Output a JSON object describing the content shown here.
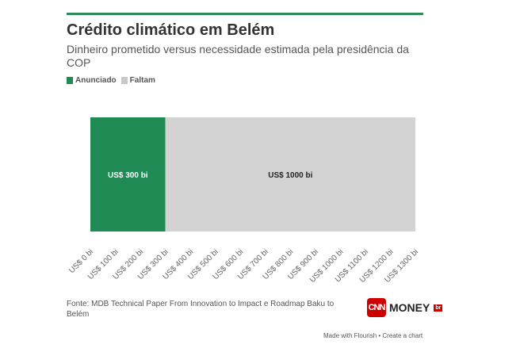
{
  "title": "Crédito climático em Belém",
  "subtitle": "Dinheiro prometido versus necessidade estimada pela presidência da COP",
  "legend": [
    {
      "label": "Anunciado",
      "color": "#1f8a54"
    },
    {
      "label": "Faltam",
      "color": "#c8c8c8"
    }
  ],
  "source": "Fonte: MDB Technical Paper From Innovation to Impact e Roadmap Baku to Belém",
  "logo": {
    "cnn": "CNN",
    "money": "MONEY",
    "badge": "br"
  },
  "footer": "Made with Flourish • Create a chart",
  "chart_data": {
    "type": "bar",
    "orientation": "horizontal",
    "stacked": true,
    "categories": [
      ""
    ],
    "series": [
      {
        "name": "Anunciado",
        "values": [
          300
        ],
        "label": "US$ 300 bi",
        "color": "#1f8a54"
      },
      {
        "name": "Faltam",
        "values": [
          1000
        ],
        "label": "US$ 1000 bi",
        "color": "#d3d3d3"
      }
    ],
    "xlim": [
      0,
      1300
    ],
    "xticks": [
      0,
      100,
      200,
      300,
      400,
      500,
      600,
      700,
      800,
      900,
      1000,
      1100,
      1200,
      1300
    ],
    "xtick_labels": [
      "US$ 0 bi",
      "US$ 100 bi",
      "US$ 200 bi",
      "US$ 300 bi",
      "US$ 400 bi",
      "US$ 500 bi",
      "US$ 600 bi",
      "US$ 700 bi",
      "US$ 800 bi",
      "US$ 900 bi",
      "US$ 1000 bi",
      "US$ 1100 bi",
      "US$ 1200 bi",
      "US$ 1300 bi"
    ],
    "grid": false,
    "legend_position": "top-left"
  }
}
